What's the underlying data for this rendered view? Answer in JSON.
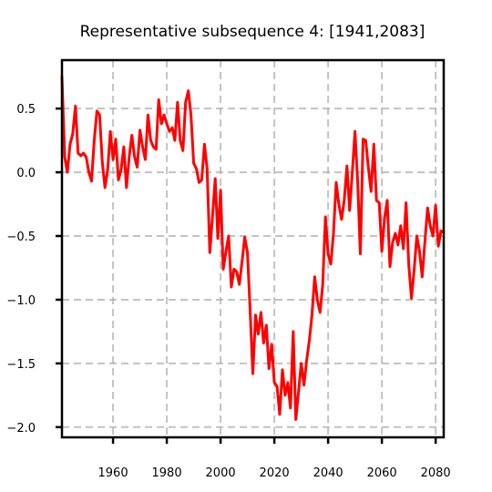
{
  "chart_data": {
    "type": "line",
    "title": "Representative subsequence 4: [1941,2083]",
    "xlabel": "",
    "ylabel": "",
    "xlim": [
      1941,
      2083
    ],
    "ylim": [
      -2.08,
      0.88
    ],
    "grid": true,
    "x_ticks": [
      1960,
      1980,
      2000,
      2020,
      2040,
      2060,
      2080
    ],
    "y_ticks": [
      0.5,
      0.0,
      -0.5,
      -1.0,
      -1.5,
      -2.0
    ],
    "y_tick_labels": [
      "0.5",
      "0.0",
      "−0.5",
      "−1.0",
      "−1.5",
      "−2.0"
    ],
    "series": [
      {
        "color": "#ff0000",
        "x": [
          1941,
          1942,
          1943,
          1944,
          1945,
          1946,
          1947,
          1948,
          1949,
          1950,
          1951,
          1952,
          1953,
          1954,
          1955,
          1956,
          1957,
          1958,
          1959,
          1960,
          1961,
          1962,
          1963,
          1964,
          1965,
          1966,
          1967,
          1968,
          1969,
          1970,
          1971,
          1972,
          1973,
          1974,
          1975,
          1976,
          1977,
          1978,
          1979,
          1980,
          1981,
          1982,
          1983,
          1984,
          1985,
          1986,
          1987,
          1988,
          1989,
          1990,
          1991,
          1992,
          1993,
          1994,
          1995,
          1996,
          1997,
          1998,
          1999,
          2000,
          2001,
          2002,
          2003,
          2004,
          2005,
          2006,
          2007,
          2008,
          2009,
          2010,
          2011,
          2012,
          2013,
          2014,
          2015,
          2016,
          2017,
          2018,
          2019,
          2020,
          2021,
          2022,
          2023,
          2024,
          2025,
          2026,
          2027,
          2028,
          2029,
          2030,
          2031,
          2032,
          2033,
          2034,
          2035,
          2036,
          2037,
          2038,
          2039,
          2040,
          2041,
          2042,
          2043,
          2044,
          2045,
          2046,
          2047,
          2048,
          2049,
          2050,
          2051,
          2052,
          2053,
          2054,
          2055,
          2056,
          2057,
          2058,
          2059,
          2060,
          2061,
          2062,
          2063,
          2064,
          2065,
          2066,
          2067,
          2068,
          2069,
          2070,
          2071,
          2072,
          2073,
          2074,
          2075,
          2076,
          2077,
          2078,
          2079,
          2080,
          2081,
          2082,
          2083
        ],
        "y": [
          0.75,
          0.12,
          0.0,
          0.22,
          0.3,
          0.52,
          0.15,
          0.13,
          0.15,
          0.12,
          0.0,
          -0.07,
          0.25,
          0.48,
          0.45,
          0.08,
          -0.12,
          0.02,
          0.32,
          0.1,
          0.26,
          -0.06,
          0.02,
          0.2,
          -0.12,
          0.12,
          0.29,
          0.12,
          0.04,
          0.33,
          0.2,
          0.1,
          0.45,
          0.25,
          0.2,
          0.18,
          0.57,
          0.38,
          0.45,
          0.38,
          0.32,
          0.35,
          0.25,
          0.55,
          0.25,
          0.17,
          0.55,
          0.64,
          0.45,
          0.07,
          0.03,
          -0.08,
          -0.06,
          0.22,
          0.03,
          -0.63,
          -0.35,
          -0.05,
          -0.52,
          -0.14,
          -0.76,
          -0.62,
          -0.5,
          -0.9,
          -0.76,
          -0.78,
          -0.88,
          -0.7,
          -0.51,
          -0.63,
          -1.08,
          -1.58,
          -1.12,
          -1.27,
          -1.1,
          -1.34,
          -1.2,
          -1.54,
          -1.35,
          -1.65,
          -1.68,
          -1.9,
          -1.55,
          -1.75,
          -1.65,
          -1.85,
          -1.25,
          -1.94,
          -1.72,
          -1.5,
          -1.67,
          -1.48,
          -1.32,
          -1.12,
          -0.82,
          -1.0,
          -1.1,
          -0.88,
          -0.35,
          -0.64,
          -0.72,
          -0.48,
          -0.08,
          -0.25,
          -0.37,
          -0.22,
          0.05,
          -0.3,
          0.0,
          0.32,
          -0.08,
          -0.64,
          0.26,
          0.25,
          0.03,
          -0.15,
          0.22,
          -0.22,
          -0.24,
          -0.62,
          -0.36,
          -0.22,
          -0.74,
          -0.55,
          -0.48,
          -0.57,
          -0.42,
          -0.6,
          -0.24,
          -0.72,
          -0.99,
          -0.77,
          -0.5,
          -0.62,
          -0.82,
          -0.55,
          -0.28,
          -0.42,
          -0.5,
          -0.26,
          -0.58,
          -0.46,
          -0.47
        ]
      }
    ]
  }
}
